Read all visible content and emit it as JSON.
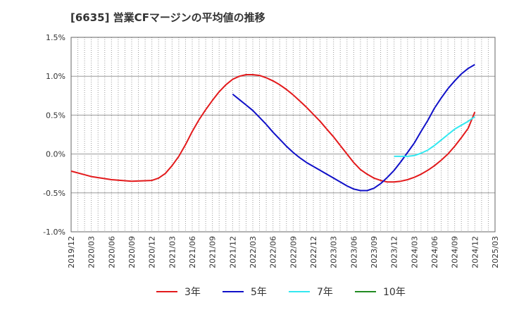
{
  "chart_data": {
    "type": "line",
    "title": "[6635]  営業CFマージンの平均値の推移",
    "xlabel": "",
    "ylabel": "",
    "x_ticks": [
      "2019/12",
      "2020/03",
      "2020/06",
      "2020/09",
      "2020/12",
      "2021/03",
      "2021/06",
      "2021/09",
      "2021/12",
      "2022/03",
      "2022/06",
      "2022/09",
      "2022/12",
      "2023/03",
      "2023/06",
      "2023/09",
      "2023/12",
      "2024/03",
      "2024/06",
      "2024/09",
      "2024/12",
      "2025/03"
    ],
    "y_ticks": [
      -1.0,
      -0.5,
      0.0,
      0.5,
      1.0,
      1.5
    ],
    "y_tick_labels": [
      "-1.0%",
      "-0.5%",
      "0.0%",
      "0.5%",
      "1.0%",
      "1.5%"
    ],
    "ylim": [
      -1.0,
      1.5
    ],
    "grid": true,
    "legend_position": "bottom",
    "series": [
      {
        "name": "3年",
        "color": "#e31a1c",
        "x": [
          "2019/12",
          "2020/03",
          "2020/06",
          "2020/09",
          "2020/12",
          "2021/01",
          "2021/02",
          "2021/03",
          "2021/04",
          "2021/05",
          "2021/06",
          "2021/07",
          "2021/08",
          "2021/09",
          "2021/10",
          "2021/11",
          "2021/12",
          "2022/01",
          "2022/02",
          "2022/03",
          "2022/04",
          "2022/05",
          "2022/06",
          "2022/07",
          "2022/08",
          "2022/09",
          "2022/10",
          "2022/11",
          "2022/12",
          "2023/01",
          "2023/02",
          "2023/03",
          "2023/04",
          "2023/05",
          "2023/06",
          "2023/07",
          "2023/08",
          "2023/09",
          "2023/10",
          "2023/11",
          "2023/12",
          "2024/01",
          "2024/02",
          "2024/03",
          "2024/04",
          "2024/05",
          "2024/06",
          "2024/07",
          "2024/08",
          "2024/09",
          "2024/10",
          "2024/11",
          "2024/12"
        ],
        "values": [
          -0.22,
          -0.29,
          -0.33,
          -0.35,
          -0.34,
          -0.31,
          -0.25,
          -0.15,
          -0.03,
          0.12,
          0.29,
          0.44,
          0.57,
          0.69,
          0.8,
          0.89,
          0.96,
          1.0,
          1.02,
          1.02,
          1.01,
          0.98,
          0.94,
          0.89,
          0.83,
          0.76,
          0.68,
          0.6,
          0.51,
          0.42,
          0.32,
          0.22,
          0.11,
          0.0,
          -0.11,
          -0.2,
          -0.26,
          -0.31,
          -0.34,
          -0.36,
          -0.36,
          -0.35,
          -0.33,
          -0.3,
          -0.26,
          -0.21,
          -0.15,
          -0.08,
          0.0,
          0.1,
          0.21,
          0.33,
          0.54
        ]
      },
      {
        "name": "5年",
        "color": "#1010c8",
        "x": [
          "2021/12",
          "2022/01",
          "2022/02",
          "2022/03",
          "2022/04",
          "2022/05",
          "2022/06",
          "2022/07",
          "2022/08",
          "2022/09",
          "2022/10",
          "2022/11",
          "2022/12",
          "2023/01",
          "2023/02",
          "2023/03",
          "2023/04",
          "2023/05",
          "2023/06",
          "2023/07",
          "2023/08",
          "2023/09",
          "2023/10",
          "2023/11",
          "2023/12",
          "2024/01",
          "2024/02",
          "2024/03",
          "2024/04",
          "2024/05",
          "2024/06",
          "2024/07",
          "2024/08",
          "2024/09",
          "2024/10",
          "2024/11",
          "2024/12"
        ],
        "values": [
          0.77,
          0.7,
          0.63,
          0.56,
          0.47,
          0.38,
          0.28,
          0.19,
          0.1,
          0.02,
          -0.05,
          -0.11,
          -0.16,
          -0.21,
          -0.26,
          -0.31,
          -0.36,
          -0.41,
          -0.45,
          -0.47,
          -0.47,
          -0.44,
          -0.38,
          -0.3,
          -0.21,
          -0.1,
          0.02,
          0.14,
          0.29,
          0.43,
          0.59,
          0.72,
          0.84,
          0.94,
          1.03,
          1.1,
          1.15
        ]
      },
      {
        "name": "7年",
        "color": "#33e8f0",
        "x": [
          "2023/12",
          "2024/01",
          "2024/02",
          "2024/03",
          "2024/04",
          "2024/05",
          "2024/06",
          "2024/07",
          "2024/08",
          "2024/09",
          "2024/10",
          "2024/11",
          "2024/12"
        ],
        "values": [
          -0.03,
          -0.03,
          -0.03,
          -0.02,
          0.01,
          0.05,
          0.11,
          0.18,
          0.25,
          0.32,
          0.37,
          0.42,
          0.48
        ]
      },
      {
        "name": "10年",
        "color": "#228b22",
        "x": [],
        "values": []
      }
    ]
  }
}
